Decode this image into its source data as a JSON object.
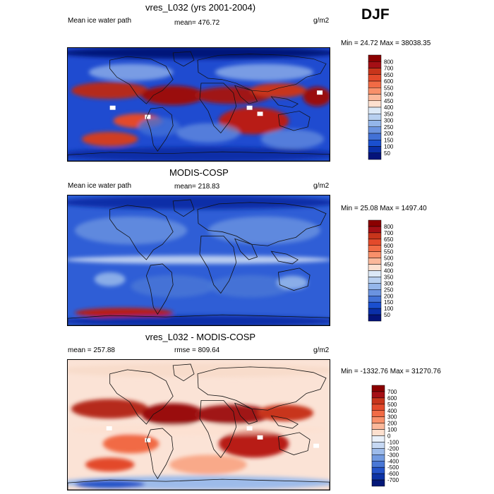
{
  "header": {
    "season": "DJF"
  },
  "panels": [
    {
      "title": "vres_L032 (yrs 2001-2004)",
      "left_label": "Mean ice water path",
      "center_label": "mean= 476.72",
      "units": "g/m2",
      "minmax": "Min =  24.72 Max = 38038.35",
      "colorbar_labels": [
        "800",
        "700",
        "650",
        "600",
        "550",
        "500",
        "450",
        "400",
        "350",
        "300",
        "250",
        "200",
        "150",
        "100",
        "50"
      ],
      "colorbar_colors": [
        "#8b0000",
        "#a50f15",
        "#c8351b",
        "#e34a2b",
        "#f16b45",
        "#f8906a",
        "#fbb89a",
        "#fde0cf",
        "#dce9f7",
        "#b8d0f0",
        "#94b6ea",
        "#6b93e0",
        "#4271d6",
        "#1a4fcf",
        "#0a2fa8",
        "#04137a"
      ],
      "style": "full"
    },
    {
      "title": "MODIS-COSP",
      "left_label": "Mean ice water path",
      "center_label": "mean= 218.83",
      "units": "g/m2",
      "minmax": "Min =  25.08 Max = 1497.40",
      "colorbar_labels": [
        "800",
        "700",
        "650",
        "600",
        "550",
        "500",
        "450",
        "400",
        "350",
        "300",
        "250",
        "200",
        "150",
        "100",
        "50"
      ],
      "colorbar_colors": [
        "#8b0000",
        "#a50f15",
        "#c8351b",
        "#e34a2b",
        "#f16b45",
        "#f8906a",
        "#fbb89a",
        "#fde0cf",
        "#dce9f7",
        "#b8d0f0",
        "#94b6ea",
        "#6b93e0",
        "#4271d6",
        "#1a4fcf",
        "#0a2fa8",
        "#04137a"
      ],
      "style": "blue"
    },
    {
      "title": "vres_L032 - MODIS-COSP",
      "left_label": "mean = 257.88",
      "center_label": "rmse = 809.64",
      "units": "g/m2",
      "minmax": "Min = -1332.76 Max = 31270.76",
      "colorbar_labels": [
        "700",
        "600",
        "500",
        "400",
        "300",
        "200",
        "100",
        "0",
        "-100",
        "-200",
        "-300",
        "-400",
        "-500",
        "-600",
        "-700"
      ],
      "colorbar_colors": [
        "#8b0000",
        "#a50f15",
        "#c8351b",
        "#e34a2b",
        "#f16b45",
        "#f8906a",
        "#fbb89a",
        "#fde0cf",
        "#eaf1fb",
        "#c6d8f3",
        "#9dbbea",
        "#729ae0",
        "#4a78d6",
        "#2453c9",
        "#0d33a6",
        "#041878"
      ],
      "style": "diff"
    }
  ],
  "chart_data": [
    {
      "type": "heatmap",
      "title": "vres_L032 (yrs 2001-2004)",
      "subtitle": "Mean ice water path",
      "units": "g/m2",
      "mean": 476.72,
      "min": 24.72,
      "max": 38038.35,
      "contour_levels": [
        50,
        100,
        150,
        200,
        250,
        300,
        350,
        400,
        450,
        500,
        550,
        600,
        650,
        700,
        800
      ]
    },
    {
      "type": "heatmap",
      "title": "MODIS-COSP",
      "subtitle": "Mean ice water path",
      "units": "g/m2",
      "mean": 218.83,
      "min": 25.08,
      "max": 1497.4,
      "contour_levels": [
        50,
        100,
        150,
        200,
        250,
        300,
        350,
        400,
        450,
        500,
        550,
        600,
        650,
        700,
        800
      ]
    },
    {
      "type": "heatmap",
      "title": "vres_L032 - MODIS-COSP",
      "units": "g/m2",
      "mean": 257.88,
      "rmse": 809.64,
      "min": -1332.76,
      "max": 31270.76,
      "contour_levels": [
        -700,
        -600,
        -500,
        -400,
        -300,
        -200,
        -100,
        0,
        100,
        200,
        300,
        400,
        500,
        600,
        700
      ]
    }
  ]
}
